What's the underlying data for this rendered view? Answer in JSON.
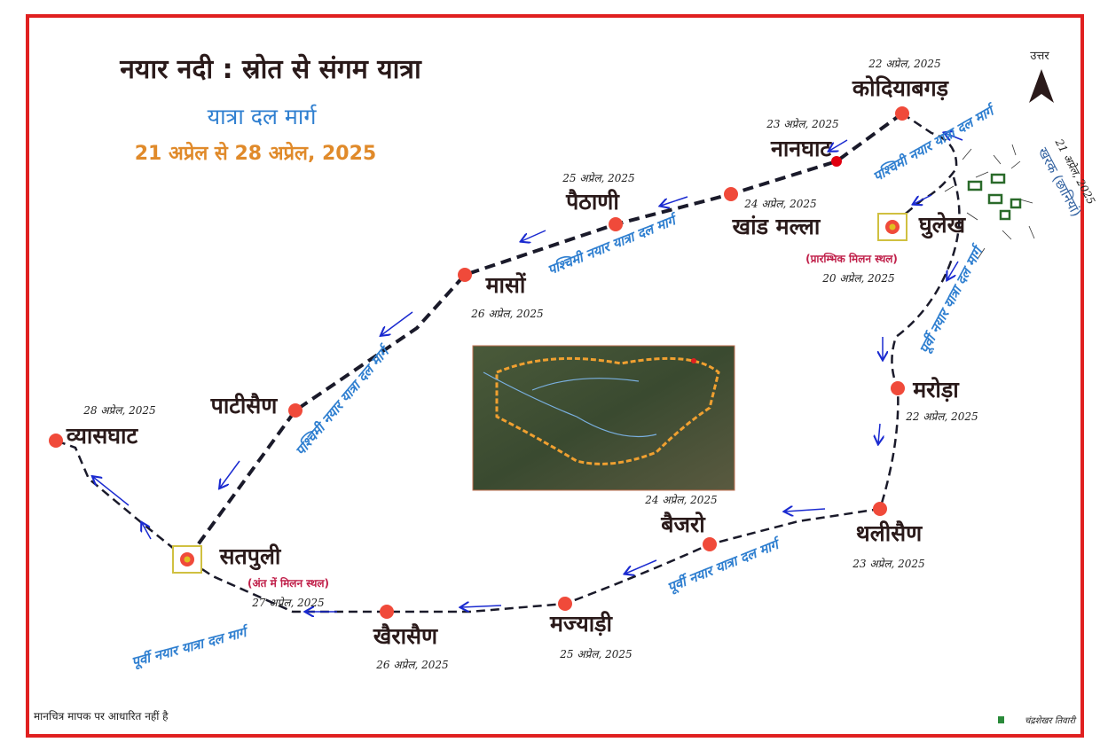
{
  "title": "नयार नदी : स्रोत से संगम यात्रा",
  "subtitle": "यात्रा दल मार्ग",
  "date_range": "21 अप्रेल से 28 अप्रेल, 2025",
  "north_label": "उत्तर",
  "disclaimer": "मानचित्र मापक पर आधारित नहीं है",
  "author": "चंद्रशेखर तिवारी",
  "colors": {
    "border": "#e02020",
    "dot": "#f04a3a",
    "west_route": "#1a1a2a",
    "route_label": "#2f7fd0",
    "arrow": "#1a2ad0",
    "date_title": "#e08a2a",
    "meeting_label": "#c0204a",
    "kharak": "#2a6a2a"
  },
  "places": [
    {
      "name": "कोदियाबगड़",
      "date": "22 अप्रेल, 2025"
    },
    {
      "name": "नानघाट",
      "date": "23 अप्रेल, 2025"
    },
    {
      "name": "खांड मल्ला",
      "date": "24 अप्रेल, 2025"
    },
    {
      "name": "पैठाणी",
      "date": "25 अप्रेल, 2025"
    },
    {
      "name": "मासों",
      "date": "26 अप्रेल, 2025"
    },
    {
      "name": "पाटीसैण",
      "date": ""
    },
    {
      "name": "व्यासघाट",
      "date": "28 अप्रेल, 2025"
    },
    {
      "name": "खैरासैण",
      "date": "26 अप्रेल, 2025"
    },
    {
      "name": "मज्याड़ी",
      "date": "25 अप्रेल, 2025"
    },
    {
      "name": "बैजरो",
      "date": "24 अप्रेल, 2025"
    },
    {
      "name": "थलीसैण",
      "date": "23 अप्रेल, 2025"
    },
    {
      "name": "मरोड़ा",
      "date": "22 अप्रेल, 2025"
    }
  ],
  "meeting_points": [
    {
      "name": "घुलेख",
      "note": "(प्रारम्भिक मिलन स्थल)",
      "date": "20 अप्रेल, 2025"
    },
    {
      "name": "सतपुली",
      "note": "(अंत में मिलन स्थल)",
      "date": "27 अप्रेल, 2025"
    }
  ],
  "kharak": {
    "name": "खरक (छानियां)",
    "date": "21 अप्रेल, 2025"
  },
  "route_labels": {
    "west": "पश्चिमी नयार यात्रा दल मार्ग",
    "east": "पूर्वी नयार यात्रा दल मार्ग"
  }
}
